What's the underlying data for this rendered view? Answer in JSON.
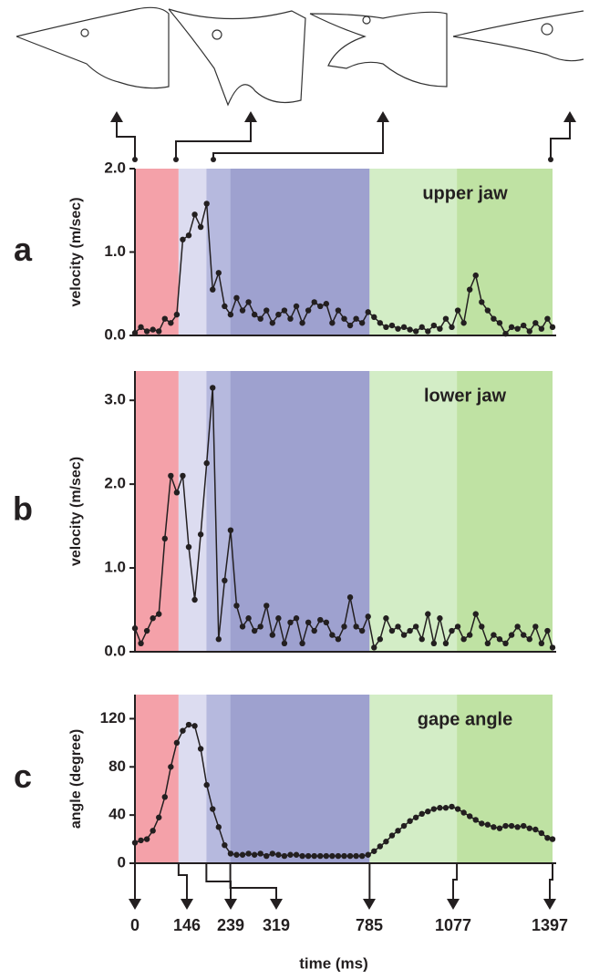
{
  "chart_data": [
    {
      "type": "line",
      "panel": "a",
      "ylabel": "velocity (m/sec)",
      "annotation": "upper jaw",
      "color": "#231f20",
      "xlim": [
        0,
        1397
      ],
      "ylim": [
        0,
        2
      ],
      "yticks": [
        {
          "value": 0,
          "label": "0.0"
        },
        {
          "value": 1,
          "label": "1.0"
        },
        {
          "value": 2,
          "label": "2.0"
        }
      ],
      "bands": [
        {
          "start": 0,
          "end": 146,
          "color": "#f4a1a9"
        },
        {
          "start": 146,
          "end": 239,
          "color": "#dcdcf0"
        },
        {
          "start": 239,
          "end": 319,
          "color": "#b6b9de"
        },
        {
          "start": 319,
          "end": 785,
          "color": "#9ea1cf"
        },
        {
          "start": 785,
          "end": 1077,
          "color": "#d3edc6"
        },
        {
          "start": 1077,
          "end": 1397,
          "color": "#bfe2a3"
        }
      ],
      "x": [
        0,
        20,
        40,
        60,
        80,
        100,
        120,
        140,
        160,
        180,
        200,
        220,
        240,
        260,
        280,
        300,
        320,
        340,
        360,
        380,
        400,
        420,
        440,
        460,
        480,
        500,
        520,
        540,
        560,
        580,
        600,
        620,
        640,
        660,
        680,
        700,
        720,
        740,
        760,
        780,
        800,
        820,
        840,
        860,
        880,
        900,
        920,
        940,
        960,
        980,
        1000,
        1020,
        1040,
        1060,
        1080,
        1100,
        1120,
        1140,
        1160,
        1180,
        1200,
        1220,
        1240,
        1260,
        1280,
        1300,
        1320,
        1340,
        1360,
        1380,
        1397
      ],
      "values": [
        0.03,
        0.1,
        0.05,
        0.07,
        0.05,
        0.2,
        0.15,
        0.25,
        1.15,
        1.2,
        1.45,
        1.3,
        1.58,
        0.55,
        0.75,
        0.35,
        0.25,
        0.45,
        0.3,
        0.4,
        0.25,
        0.2,
        0.3,
        0.15,
        0.25,
        0.3,
        0.2,
        0.35,
        0.15,
        0.3,
        0.4,
        0.35,
        0.38,
        0.15,
        0.3,
        0.2,
        0.12,
        0.2,
        0.15,
        0.28,
        0.22,
        0.15,
        0.1,
        0.12,
        0.08,
        0.1,
        0.07,
        0.05,
        0.1,
        0.05,
        0.12,
        0.08,
        0.2,
        0.1,
        0.3,
        0.15,
        0.55,
        0.72,
        0.4,
        0.3,
        0.2,
        0.15,
        0.02,
        0.1,
        0.08,
        0.12,
        0.05,
        0.15,
        0.08,
        0.2,
        0.1
      ]
    },
    {
      "type": "line",
      "panel": "b",
      "ylabel": "velocity (m/sec)",
      "annotation": "lower jaw",
      "color": "#231f20",
      "xlim": [
        0,
        1397
      ],
      "ylim": [
        0,
        3.35
      ],
      "yticks": [
        {
          "value": 0,
          "label": "0.0"
        },
        {
          "value": 1,
          "label": "1.0"
        },
        {
          "value": 2,
          "label": "2.0"
        },
        {
          "value": 3,
          "label": "3.0"
        }
      ],
      "bands": [
        {
          "start": 0,
          "end": 146,
          "color": "#f4a1a9"
        },
        {
          "start": 146,
          "end": 239,
          "color": "#dcdcf0"
        },
        {
          "start": 239,
          "end": 319,
          "color": "#b6b9de"
        },
        {
          "start": 319,
          "end": 785,
          "color": "#9ea1cf"
        },
        {
          "start": 785,
          "end": 1077,
          "color": "#d3edc6"
        },
        {
          "start": 1077,
          "end": 1397,
          "color": "#bfe2a3"
        }
      ],
      "x": [
        0,
        20,
        40,
        60,
        80,
        100,
        120,
        140,
        160,
        180,
        200,
        220,
        240,
        260,
        280,
        300,
        320,
        340,
        360,
        380,
        400,
        420,
        440,
        460,
        480,
        500,
        520,
        540,
        560,
        580,
        600,
        620,
        640,
        660,
        680,
        700,
        720,
        740,
        760,
        780,
        800,
        820,
        840,
        860,
        880,
        900,
        920,
        940,
        960,
        980,
        1000,
        1020,
        1040,
        1060,
        1080,
        1100,
        1120,
        1140,
        1160,
        1180,
        1200,
        1220,
        1240,
        1260,
        1280,
        1300,
        1320,
        1340,
        1360,
        1380,
        1397
      ],
      "values": [
        0.28,
        0.1,
        0.25,
        0.4,
        0.45,
        1.35,
        2.1,
        1.9,
        2.1,
        1.25,
        0.62,
        1.4,
        2.25,
        3.15,
        0.15,
        0.85,
        1.45,
        0.55,
        0.3,
        0.4,
        0.25,
        0.3,
        0.55,
        0.2,
        0.4,
        0.1,
        0.35,
        0.4,
        0.1,
        0.35,
        0.25,
        0.38,
        0.35,
        0.2,
        0.15,
        0.3,
        0.65,
        0.3,
        0.25,
        0.42,
        0.05,
        0.15,
        0.4,
        0.25,
        0.3,
        0.2,
        0.25,
        0.3,
        0.15,
        0.45,
        0.1,
        0.4,
        0.1,
        0.25,
        0.3,
        0.15,
        0.2,
        0.45,
        0.3,
        0.1,
        0.2,
        0.15,
        0.1,
        0.2,
        0.3,
        0.2,
        0.15,
        0.3,
        0.1,
        0.25,
        0.05
      ]
    },
    {
      "type": "line",
      "panel": "c",
      "ylabel": "angle (degree)",
      "annotation": "gape angle",
      "color": "#231f20",
      "xlim": [
        0,
        1397
      ],
      "ylim": [
        0,
        140
      ],
      "yticks": [
        0,
        40,
        80,
        120
      ],
      "xticks": [
        0,
        146,
        239,
        319,
        785,
        1077,
        1397
      ],
      "xlabel": "time (ms)",
      "bands": [
        {
          "start": 0,
          "end": 146,
          "color": "#f4a1a9"
        },
        {
          "start": 146,
          "end": 239,
          "color": "#dcdcf0"
        },
        {
          "start": 239,
          "end": 319,
          "color": "#b6b9de"
        },
        {
          "start": 319,
          "end": 785,
          "color": "#9ea1cf"
        },
        {
          "start": 785,
          "end": 1077,
          "color": "#d3edc6"
        },
        {
          "start": 1077,
          "end": 1397,
          "color": "#bfe2a3"
        }
      ],
      "x": [
        0,
        20,
        40,
        60,
        80,
        100,
        120,
        140,
        160,
        180,
        200,
        220,
        240,
        260,
        280,
        300,
        320,
        340,
        360,
        380,
        400,
        420,
        440,
        460,
        480,
        500,
        520,
        540,
        560,
        580,
        600,
        620,
        640,
        660,
        680,
        700,
        720,
        740,
        760,
        780,
        800,
        820,
        840,
        860,
        880,
        900,
        920,
        940,
        960,
        980,
        1000,
        1020,
        1040,
        1060,
        1080,
        1100,
        1120,
        1140,
        1160,
        1180,
        1200,
        1220,
        1240,
        1260,
        1280,
        1300,
        1320,
        1340,
        1360,
        1380,
        1397
      ],
      "values": [
        17,
        19,
        20,
        27,
        38,
        55,
        80,
        100,
        110,
        115,
        114,
        95,
        65,
        45,
        30,
        15,
        8,
        7,
        7,
        8,
        7,
        8,
        6,
        8,
        7,
        6,
        7,
        7,
        6,
        6,
        6,
        6,
        6,
        6,
        6,
        6,
        6,
        6,
        6,
        7,
        10,
        14,
        18,
        23,
        27,
        31,
        35,
        38,
        41,
        43,
        45,
        46,
        46,
        47,
        45,
        42,
        39,
        36,
        33,
        32,
        30,
        29,
        31,
        31,
        30,
        31,
        29,
        28,
        25,
        21,
        20
      ]
    }
  ]
}
